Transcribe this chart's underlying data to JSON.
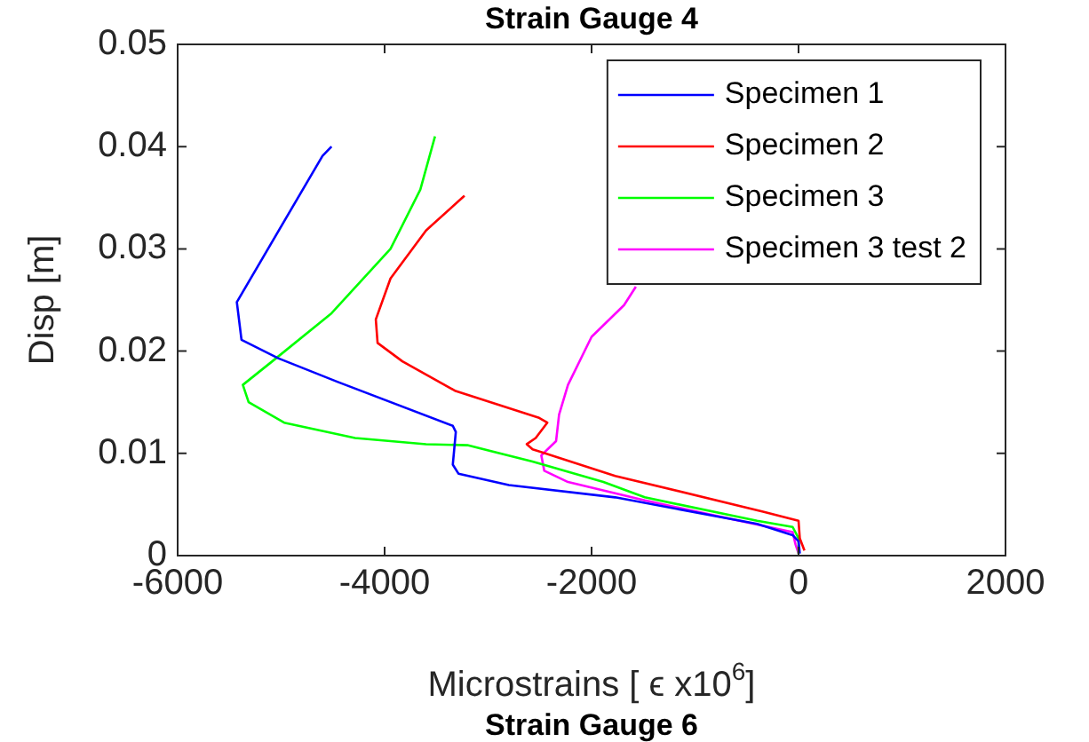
{
  "chart_data": {
    "type": "line",
    "title": "Strain Gauge 4",
    "xlabel": "Microstrains [ ϵ x10$^{6}$]",
    "ylabel": "Disp [m]",
    "annotations": [
      "Strain Gauge 6"
    ],
    "xlim": [
      -6000,
      2000
    ],
    "xticks": [
      -6000,
      -4000,
      -2000,
      0,
      2000
    ],
    "ylim": [
      0,
      0.05
    ],
    "yticks": [
      0,
      0.01,
      0.02,
      0.03,
      0.04,
      0.05
    ],
    "legend": "top right",
    "line_style": "solid",
    "marker": "none",
    "series": [
      {
        "name": "Specimen 1",
        "color": "#0000ff",
        "x": [
          -4513,
          -4600,
          -5428,
          -5383,
          -5028,
          -4457,
          -3341,
          -3312,
          -3341,
          -3285,
          -2800,
          -1772,
          -400,
          -57,
          0,
          12
        ],
        "values": [
          0.04,
          0.0391,
          0.0248,
          0.0211,
          0.0193,
          0.017,
          0.0127,
          0.0121,
          0.0089,
          0.008,
          0.0069,
          0.0057,
          0.0031,
          0.002,
          0.0014,
          0.0002
        ]
      },
      {
        "name": "Specimen 2",
        "color": "#ff0000",
        "x": [
          -3228,
          -3600,
          -3943,
          -4085,
          -4068,
          -3828,
          -3314,
          -2514,
          -2428,
          -2540,
          -2626,
          -2570,
          -1772,
          -343,
          0,
          12,
          57
        ],
        "values": [
          0.0352,
          0.0318,
          0.0271,
          0.0231,
          0.0208,
          0.019,
          0.0161,
          0.0135,
          0.013,
          0.0115,
          0.0109,
          0.0104,
          0.0078,
          0.0043,
          0.0034,
          0.0017,
          0.0005
        ]
      },
      {
        "name": "Specimen 3",
        "color": "#00ff00",
        "x": [
          -3513,
          -3655,
          -3943,
          -4513,
          -5086,
          -5370,
          -5314,
          -4971,
          -4285,
          -3600,
          -3200,
          -2571,
          -1886,
          -1486,
          -400,
          -57,
          0,
          0
        ],
        "values": [
          0.041,
          0.0358,
          0.03,
          0.0237,
          0.019,
          0.0167,
          0.015,
          0.013,
          0.0115,
          0.0109,
          0.0108,
          0.0092,
          0.0072,
          0.0057,
          0.0034,
          0.0028,
          0.0017,
          0.0002
        ]
      },
      {
        "name": "Specimen 3 test 2",
        "color": "#ff00ff",
        "x": [
          -1572,
          -1686,
          -2000,
          -2228,
          -2314,
          -2343,
          -2486,
          -2457,
          -2228,
          -1486,
          -571,
          -57,
          -29,
          0
        ],
        "values": [
          0.0263,
          0.0245,
          0.0214,
          0.0167,
          0.0138,
          0.0112,
          0.0098,
          0.0083,
          0.0072,
          0.0054,
          0.0034,
          0.0023,
          0.0011,
          0.0002
        ]
      }
    ]
  }
}
